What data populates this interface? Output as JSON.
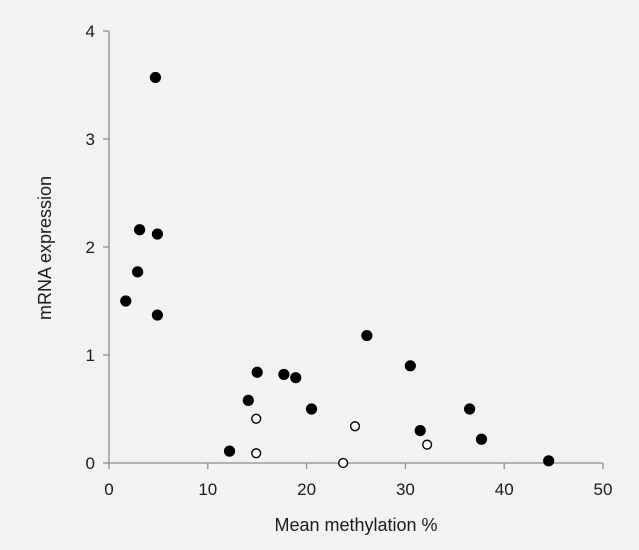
{
  "chart_data": {
    "type": "scatter",
    "title": "",
    "xlabel": "Mean methylation %",
    "ylabel": "mRNA expression",
    "xlim": [
      0,
      50
    ],
    "ylim": [
      0,
      4
    ],
    "xticks": [
      0,
      10,
      20,
      30,
      40,
      50
    ],
    "yticks": [
      0,
      1,
      2,
      3,
      4
    ],
    "grid": false,
    "legend": "none",
    "series": [
      {
        "marker": "filled-circle",
        "color": "#000000",
        "points": [
          {
            "x": 1.7,
            "y": 1.5
          },
          {
            "x": 2.9,
            "y": 1.77
          },
          {
            "x": 3.1,
            "y": 2.16
          },
          {
            "x": 4.7,
            "y": 3.57
          },
          {
            "x": 4.9,
            "y": 2.12
          },
          {
            "x": 4.9,
            "y": 1.37
          },
          {
            "x": 12.2,
            "y": 0.11
          },
          {
            "x": 14.1,
            "y": 0.58
          },
          {
            "x": 15.0,
            "y": 0.84
          },
          {
            "x": 17.7,
            "y": 0.82
          },
          {
            "x": 18.9,
            "y": 0.79
          },
          {
            "x": 20.5,
            "y": 0.5
          },
          {
            "x": 26.1,
            "y": 1.18
          },
          {
            "x": 30.5,
            "y": 0.9
          },
          {
            "x": 31.5,
            "y": 0.3
          },
          {
            "x": 36.5,
            "y": 0.5
          },
          {
            "x": 37.7,
            "y": 0.22
          },
          {
            "x": 44.5,
            "y": 0.02
          }
        ]
      },
      {
        "marker": "open-circle",
        "color": "#000000",
        "points": [
          {
            "x": 14.9,
            "y": 0.41
          },
          {
            "x": 14.9,
            "y": 0.09
          },
          {
            "x": 23.7,
            "y": 0.0
          },
          {
            "x": 24.9,
            "y": 0.34
          },
          {
            "x": 32.2,
            "y": 0.17
          }
        ]
      }
    ]
  }
}
